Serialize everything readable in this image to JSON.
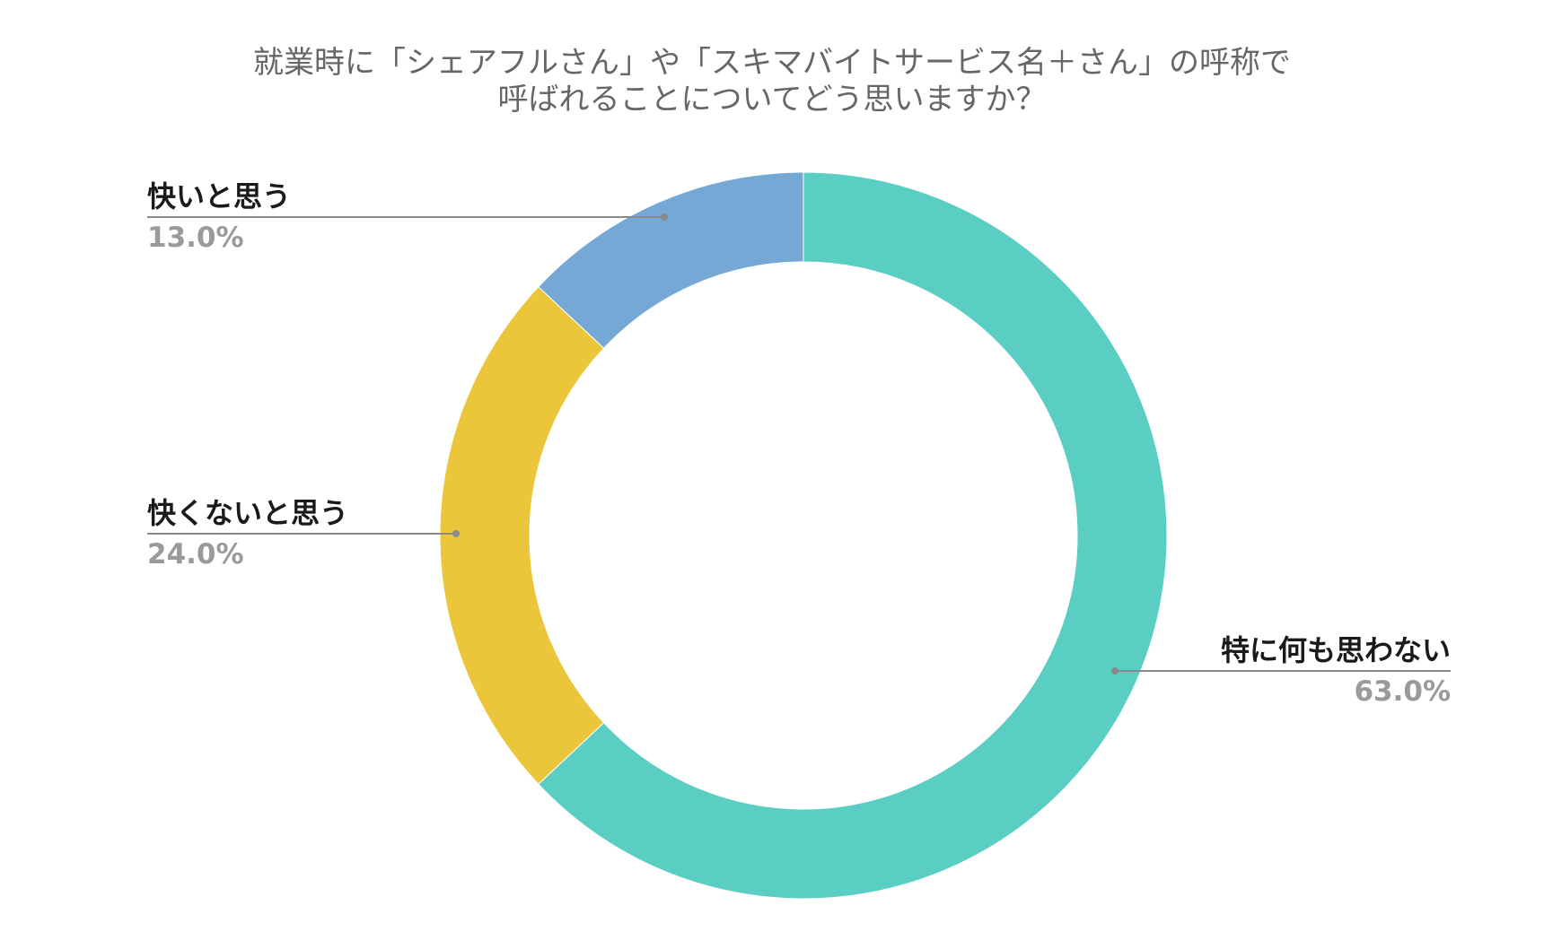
{
  "chart_data": {
    "type": "pie",
    "donut": true,
    "title_lines": [
      "就業時に「シェアフルさん」や「スキマバイトサービス名＋さん」の呼称で",
      "呼ばれることについてどう思いますか？"
    ],
    "slices": [
      {
        "label": "特に何も思わない",
        "value": 63.0,
        "value_label": "63.0%",
        "color": "#5ACEC3"
      },
      {
        "label": "快くないと思う",
        "value": 24.0,
        "value_label": "24.0%",
        "color": "#EBC63A"
      },
      {
        "label": "快いと思う",
        "value": 13.0,
        "value_label": "13.0%",
        "color": "#76A8D6"
      }
    ],
    "start_angle": "top",
    "direction": "clockwise",
    "leader_line_color": "#8a8a8a"
  }
}
